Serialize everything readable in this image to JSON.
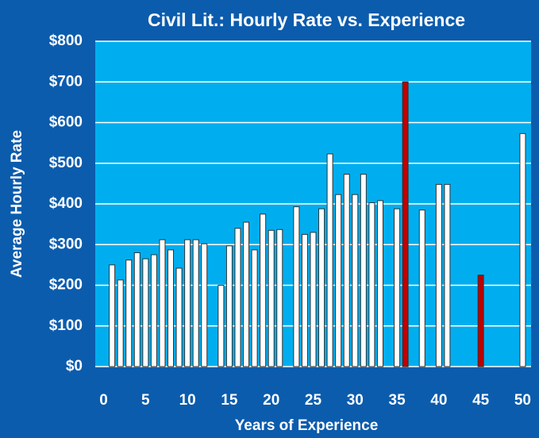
{
  "chart_data": {
    "type": "bar",
    "title": "Civil Lit.: Hourly Rate vs. Experience",
    "x_label": "Years of Experience",
    "y_label": "Average Hourly Rate",
    "x": [
      1,
      2,
      3,
      4,
      5,
      6,
      7,
      8,
      9,
      10,
      11,
      12,
      14,
      15,
      16,
      17,
      18,
      19,
      20,
      21,
      23,
      24,
      25,
      26,
      27,
      28,
      29,
      30,
      31,
      32,
      33,
      35,
      36,
      38,
      40,
      41,
      45,
      50
    ],
    "values": [
      250,
      213,
      262,
      280,
      265,
      275,
      312,
      287,
      242,
      312,
      312,
      302,
      200,
      297,
      340,
      355,
      287,
      375,
      335,
      337,
      393,
      325,
      330,
      388,
      523,
      423,
      473,
      423,
      473,
      403,
      408,
      388,
      700,
      385,
      448,
      448,
      225,
      573
    ],
    "colors": [
      "#ffffff",
      "#ffffff",
      "#ffffff",
      "#ffffff",
      "#ffffff",
      "#ffffff",
      "#ffffff",
      "#ffffff",
      "#ffffff",
      "#ffffff",
      "#ffffff",
      "#ffffff",
      "#ffffff",
      "#ffffff",
      "#ffffff",
      "#ffffff",
      "#ffffff",
      "#ffffff",
      "#ffffff",
      "#ffffff",
      "#ffffff",
      "#ffffff",
      "#ffffff",
      "#ffffff",
      "#ffffff",
      "#ffffff",
      "#ffffff",
      "#ffffff",
      "#ffffff",
      "#ffffff",
      "#ffffff",
      "#ffffff",
      "#c00000",
      "#ffffff",
      "#ffffff",
      "#ffffff",
      "#c00000",
      "#ffffff"
    ],
    "xlim": [
      -1,
      51
    ],
    "xticks": [
      0,
      5,
      10,
      15,
      20,
      25,
      30,
      35,
      40,
      45,
      50
    ],
    "ylim": [
      0,
      800
    ],
    "yticks": [
      {
        "value": 0,
        "label": "$0"
      },
      {
        "value": 100,
        "label": "$100"
      },
      {
        "value": 200,
        "label": "$200"
      },
      {
        "value": 300,
        "label": "$300"
      },
      {
        "value": 400,
        "label": "$400"
      },
      {
        "value": 500,
        "label": "$500"
      },
      {
        "value": 600,
        "label": "$600"
      },
      {
        "value": 700,
        "label": "$700"
      },
      {
        "value": 800,
        "label": "$800"
      }
    ],
    "grid": true
  }
}
